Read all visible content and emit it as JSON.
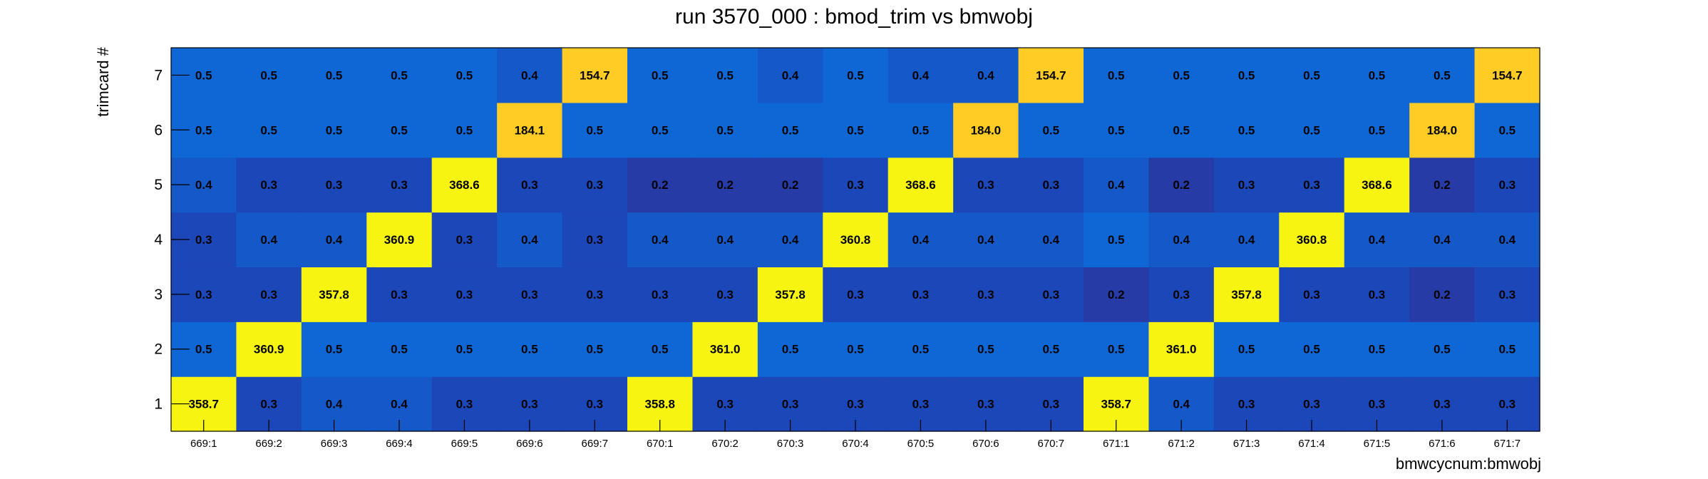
{
  "chart_data": {
    "type": "heatmap",
    "title": "run 3570_000 : bmod_trim vs bmwobj",
    "xlabel": "bmwcycnum:bmwobj",
    "ylabel": "trimcard #",
    "x_categories": [
      "669:1",
      "669:2",
      "669:3",
      "669:4",
      "669:5",
      "669:6",
      "669:7",
      "670:1",
      "670:2",
      "670:3",
      "670:4",
      "670:5",
      "670:6",
      "670:7",
      "671:1",
      "671:2",
      "671:3",
      "671:4",
      "671:5",
      "671:6",
      "671:7"
    ],
    "y_categories": [
      "1",
      "2",
      "3",
      "4",
      "5",
      "6",
      "7"
    ],
    "grid": false,
    "colormap": [
      "#2c3292",
      "#263ba6",
      "#1c47b8",
      "#1559c9",
      "#0f67d6",
      "#ffcc26",
      "#f8f412"
    ],
    "values": [
      [
        358.7,
        0.3,
        0.4,
        0.4,
        0.3,
        0.3,
        0.3,
        358.8,
        0.3,
        0.3,
        0.3,
        0.3,
        0.3,
        0.3,
        358.7,
        0.4,
        0.3,
        0.3,
        0.3,
        0.3,
        0.3
      ],
      [
        0.5,
        360.9,
        0.5,
        0.5,
        0.5,
        0.5,
        0.5,
        0.5,
        361.0,
        0.5,
        0.5,
        0.5,
        0.5,
        0.5,
        0.5,
        361.0,
        0.5,
        0.5,
        0.5,
        0.5,
        0.5
      ],
      [
        0.3,
        0.3,
        357.8,
        0.3,
        0.3,
        0.3,
        0.3,
        0.3,
        0.3,
        357.8,
        0.3,
        0.3,
        0.3,
        0.3,
        0.2,
        0.3,
        357.8,
        0.3,
        0.3,
        0.2,
        0.3
      ],
      [
        0.3,
        0.4,
        0.4,
        360.9,
        0.3,
        0.4,
        0.3,
        0.4,
        0.4,
        0.4,
        360.8,
        0.4,
        0.4,
        0.4,
        0.5,
        0.4,
        0.4,
        360.8,
        0.4,
        0.4,
        0.4
      ],
      [
        0.4,
        0.3,
        0.3,
        0.3,
        368.6,
        0.3,
        0.3,
        0.2,
        0.2,
        0.2,
        0.3,
        368.6,
        0.3,
        0.3,
        0.4,
        0.2,
        0.3,
        0.3,
        368.6,
        0.2,
        0.3
      ],
      [
        0.5,
        0.5,
        0.5,
        0.5,
        0.5,
        184.1,
        0.5,
        0.5,
        0.5,
        0.5,
        0.5,
        0.5,
        184.0,
        0.5,
        0.5,
        0.5,
        0.5,
        0.5,
        0.5,
        184.0,
        0.5
      ],
      [
        0.5,
        0.5,
        0.5,
        0.5,
        0.5,
        0.4,
        154.7,
        0.5,
        0.5,
        0.4,
        0.5,
        0.4,
        0.4,
        154.7,
        0.5,
        0.5,
        0.5,
        0.5,
        0.5,
        0.5,
        154.7
      ]
    ]
  }
}
